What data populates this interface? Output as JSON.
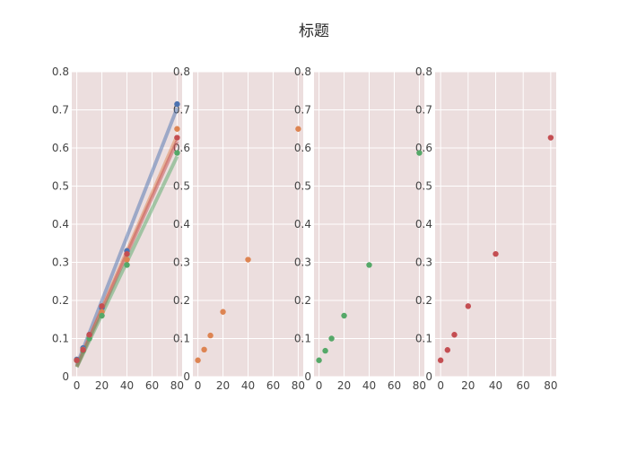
{
  "chart_data": {
    "type": "scatter",
    "title": "标题",
    "layout": "4 side-by-side panels with shared y axis",
    "plot_bg": "#ecdede",
    "grid": true,
    "x_ticks": [
      0,
      20,
      40,
      60,
      80
    ],
    "y_ticks": [
      0,
      0.1,
      0.2,
      0.3,
      0.4,
      0.5,
      0.6,
      0.7,
      0.8
    ],
    "y_tick_labels": [
      "0",
      "0.1",
      "0.2",
      "0.3",
      "0.4",
      "0.5",
      "0.6",
      "0.7",
      "0.8"
    ],
    "xlim": [
      -4,
      84
    ],
    "ylim": [
      0,
      0.8
    ],
    "panels": [
      {
        "points": [
          {
            "series": 0,
            "x": [
              0,
              5,
              10,
              20,
              40,
              80
            ],
            "y": [
              0.045,
              0.075,
              0.11,
              0.18,
              0.33,
              0.715
            ]
          },
          {
            "series": 1,
            "x": [
              0,
              5,
              10,
              20,
              40,
              80
            ],
            "y": [
              0.043,
              0.071,
              0.108,
              0.17,
              0.307,
              0.65
            ]
          },
          {
            "series": 2,
            "x": [
              0,
              5,
              10,
              20,
              40,
              80
            ],
            "y": [
              0.043,
              0.068,
              0.1,
              0.16,
              0.293,
              0.587
            ]
          },
          {
            "series": 3,
            "x": [
              0,
              5,
              10,
              20,
              40,
              80
            ],
            "y": [
              0.043,
              0.07,
              0.11,
              0.185,
              0.322,
              0.627
            ]
          }
        ],
        "fit_lines": [
          {
            "series": 0,
            "x": [
              0,
              80
            ],
            "y": [
              0.03,
              0.705
            ]
          },
          {
            "series": 1,
            "x": [
              0,
              80
            ],
            "y": [
              0.027,
              0.632
            ]
          },
          {
            "series": 3,
            "x": [
              0,
              80
            ],
            "y": [
              0.026,
              0.618
            ]
          },
          {
            "series": 2,
            "x": [
              0,
              80
            ],
            "y": [
              0.025,
              0.578
            ]
          }
        ]
      },
      {
        "points": [
          {
            "series": 1,
            "x": [
              0,
              5,
              10,
              20,
              40,
              80
            ],
            "y": [
              0.043,
              0.071,
              0.108,
              0.17,
              0.307,
              0.65
            ]
          }
        ]
      },
      {
        "points": [
          {
            "series": 2,
            "x": [
              0,
              5,
              10,
              20,
              40,
              80
            ],
            "y": [
              0.043,
              0.068,
              0.1,
              0.16,
              0.293,
              0.587
            ]
          }
        ]
      },
      {
        "points": [
          {
            "series": 3,
            "x": [
              0,
              5,
              10,
              20,
              40,
              80
            ],
            "y": [
              0.043,
              0.07,
              0.11,
              0.185,
              0.322,
              0.627
            ]
          }
        ]
      }
    ],
    "series_colors": [
      "#4c72b0",
      "#dd8452",
      "#55a868",
      "#c44e52"
    ]
  }
}
